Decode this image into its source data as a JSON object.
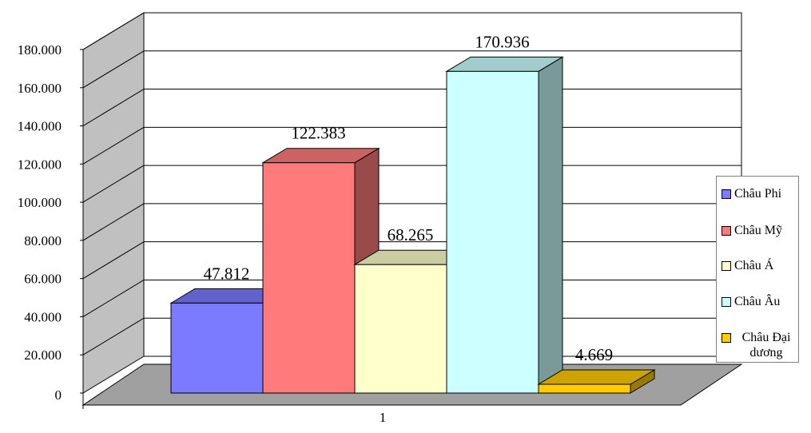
{
  "chart_data": {
    "type": "bar",
    "style": "3d-clustered-column",
    "categories": [
      "1"
    ],
    "series": [
      {
        "name": "Châu Phi",
        "values": [
          47812
        ],
        "label": "47.812",
        "color": "#7b7bff"
      },
      {
        "name": "Châu Mỹ",
        "values": [
          122383
        ],
        "label": "122.383",
        "color": "#ff7b7b"
      },
      {
        "name": "Châu Á",
        "values": [
          68265
        ],
        "label": "68.265",
        "color": "#ffffcc"
      },
      {
        "name": "Châu Âu",
        "values": [
          170936
        ],
        "label": "170.936",
        "color": "#ccffff"
      },
      {
        "name": "Châu Đại dương",
        "values": [
          4669
        ],
        "label": "4.669",
        "color": "#ffcc00"
      }
    ],
    "ylim": [
      0,
      180000
    ],
    "yticks": [
      "0",
      "20.000",
      "40.000",
      "60.000",
      "80.000",
      "100.000",
      "120.000",
      "140.000",
      "160.000",
      "180.000"
    ],
    "grid": true,
    "legend": "right",
    "wall_color": "#c0c0c0",
    "floor_color": "#a0a0a0"
  }
}
